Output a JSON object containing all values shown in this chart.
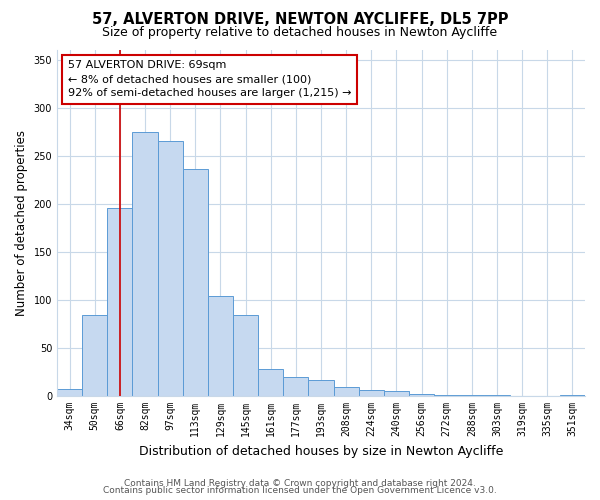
{
  "title": "57, ALVERTON DRIVE, NEWTON AYCLIFFE, DL5 7PP",
  "subtitle": "Size of property relative to detached houses in Newton Aycliffe",
  "xlabel": "Distribution of detached houses by size in Newton Aycliffe",
  "ylabel": "Number of detached properties",
  "bar_labels": [
    "34sqm",
    "50sqm",
    "66sqm",
    "82sqm",
    "97sqm",
    "113sqm",
    "129sqm",
    "145sqm",
    "161sqm",
    "177sqm",
    "193sqm",
    "208sqm",
    "224sqm",
    "240sqm",
    "256sqm",
    "272sqm",
    "288sqm",
    "303sqm",
    "319sqm",
    "335sqm",
    "351sqm"
  ],
  "bar_values": [
    7,
    84,
    196,
    275,
    265,
    236,
    104,
    84,
    28,
    20,
    17,
    9,
    6,
    5,
    2,
    1,
    1,
    1,
    0,
    0,
    1
  ],
  "bar_color": "#c6d9f0",
  "bar_edge_color": "#5b9bd5",
  "vline_x": 2,
  "vline_color": "#cc0000",
  "annotation_line1": "57 ALVERTON DRIVE: 69sqm",
  "annotation_line2": "← 8% of detached houses are smaller (100)",
  "annotation_line3": "92% of semi-detached houses are larger (1,215) →",
  "ylim": [
    0,
    360
  ],
  "yticks": [
    0,
    50,
    100,
    150,
    200,
    250,
    300,
    350
  ],
  "footer_line1": "Contains HM Land Registry data © Crown copyright and database right 2024.",
  "footer_line2": "Contains public sector information licensed under the Open Government Licence v3.0.",
  "bg_color": "#ffffff",
  "grid_color": "#c8d8e8",
  "title_fontsize": 10.5,
  "subtitle_fontsize": 9,
  "xlabel_fontsize": 9,
  "ylabel_fontsize": 8.5,
  "tick_fontsize": 7,
  "annotation_fontsize": 8,
  "footer_fontsize": 6.5
}
